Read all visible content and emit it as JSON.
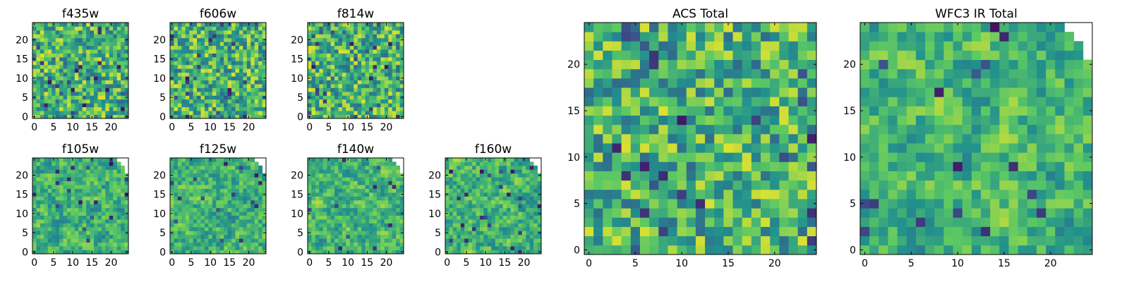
{
  "chart_data": [
    {
      "type": "heatmap",
      "title": "f435w",
      "grid_size": 25,
      "xlim": [
        -0.5,
        24.5
      ],
      "ylim": [
        -0.5,
        24.5
      ],
      "x_ticks": [
        0,
        5,
        10,
        15,
        20
      ],
      "y_ticks": [
        0,
        5,
        10,
        15,
        20
      ],
      "masked_corner": false,
      "seed": 11,
      "smooth": 0,
      "colormap": [
        "#440154",
        "#3b528b",
        "#21908d",
        "#5dc963",
        "#fde725"
      ]
    },
    {
      "type": "heatmap",
      "title": "f606w",
      "grid_size": 25,
      "xlim": [
        -0.5,
        24.5
      ],
      "ylim": [
        -0.5,
        24.5
      ],
      "x_ticks": [
        0,
        5,
        10,
        15,
        20
      ],
      "y_ticks": [
        0,
        5,
        10,
        15,
        20
      ],
      "masked_corner": false,
      "seed": 23,
      "smooth": 0,
      "colormap": [
        "#440154",
        "#3b528b",
        "#21908d",
        "#5dc963",
        "#fde725"
      ]
    },
    {
      "type": "heatmap",
      "title": "f814w",
      "grid_size": 25,
      "xlim": [
        -0.5,
        24.5
      ],
      "ylim": [
        -0.5,
        24.5
      ],
      "x_ticks": [
        0,
        5,
        10,
        15,
        20
      ],
      "y_ticks": [
        0,
        5,
        10,
        15,
        20
      ],
      "masked_corner": false,
      "seed": 37,
      "smooth": 0,
      "colormap": [
        "#440154",
        "#3b528b",
        "#21908d",
        "#5dc963",
        "#fde725"
      ]
    },
    {
      "type": "heatmap",
      "title": "f105w",
      "grid_size": 25,
      "xlim": [
        -0.5,
        24.5
      ],
      "ylim": [
        -0.5,
        24.5
      ],
      "x_ticks": [
        0,
        5,
        10,
        15,
        20
      ],
      "y_ticks": [
        0,
        5,
        10,
        15,
        20
      ],
      "masked_corner": true,
      "seed": 41,
      "smooth": 1,
      "colormap": [
        "#440154",
        "#3b528b",
        "#21908d",
        "#5dc963",
        "#fde725"
      ]
    },
    {
      "type": "heatmap",
      "title": "f125w",
      "grid_size": 25,
      "xlim": [
        -0.5,
        24.5
      ],
      "ylim": [
        -0.5,
        24.5
      ],
      "x_ticks": [
        0,
        5,
        10,
        15,
        20
      ],
      "y_ticks": [
        0,
        5,
        10,
        15,
        20
      ],
      "masked_corner": true,
      "seed": 53,
      "smooth": 1,
      "colormap": [
        "#440154",
        "#3b528b",
        "#21908d",
        "#5dc963",
        "#fde725"
      ]
    },
    {
      "type": "heatmap",
      "title": "f140w",
      "grid_size": 25,
      "xlim": [
        -0.5,
        24.5
      ],
      "ylim": [
        -0.5,
        24.5
      ],
      "x_ticks": [
        0,
        5,
        10,
        15,
        20
      ],
      "y_ticks": [
        0,
        5,
        10,
        15,
        20
      ],
      "masked_corner": true,
      "seed": 67,
      "smooth": 1,
      "colormap": [
        "#440154",
        "#3b528b",
        "#21908d",
        "#5dc963",
        "#fde725"
      ]
    },
    {
      "type": "heatmap",
      "title": "f160w",
      "grid_size": 25,
      "xlim": [
        -0.5,
        24.5
      ],
      "ylim": [
        -0.5,
        24.5
      ],
      "x_ticks": [
        0,
        5,
        10,
        15,
        20
      ],
      "y_ticks": [
        0,
        5,
        10,
        15,
        20
      ],
      "masked_corner": true,
      "seed": 79,
      "smooth": 1,
      "colormap": [
        "#440154",
        "#3b528b",
        "#21908d",
        "#5dc963",
        "#fde725"
      ]
    },
    {
      "type": "heatmap",
      "title": "ACS Total",
      "grid_size": 25,
      "xlim": [
        -0.5,
        24.5
      ],
      "ylim": [
        -0.5,
        24.5
      ],
      "x_ticks": [
        0,
        5,
        10,
        15,
        20
      ],
      "y_ticks": [
        0,
        5,
        10,
        15,
        20
      ],
      "masked_corner": false,
      "seed": 83,
      "smooth": 0,
      "colormap": [
        "#440154",
        "#3b528b",
        "#21908d",
        "#5dc963",
        "#fde725"
      ]
    },
    {
      "type": "heatmap",
      "title": "WFC3 IR Total",
      "grid_size": 25,
      "xlim": [
        -0.5,
        24.5
      ],
      "ylim": [
        -0.5,
        24.5
      ],
      "x_ticks": [
        0,
        5,
        10,
        15,
        20
      ],
      "y_ticks": [
        0,
        5,
        10,
        15,
        20
      ],
      "masked_corner": true,
      "seed": 97,
      "smooth": 1,
      "colormap": [
        "#440154",
        "#3b528b",
        "#21908d",
        "#5dc963",
        "#fde725"
      ]
    }
  ]
}
